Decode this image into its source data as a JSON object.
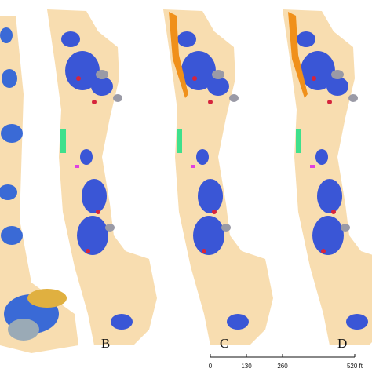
{
  "panels": [
    {
      "label": "B"
    },
    {
      "label": "C"
    },
    {
      "label": "D"
    }
  ],
  "scale_bar": {
    "ticks": [
      0,
      130,
      260,
      {
        "value": 520,
        "label": "520 ft"
      }
    ]
  }
}
